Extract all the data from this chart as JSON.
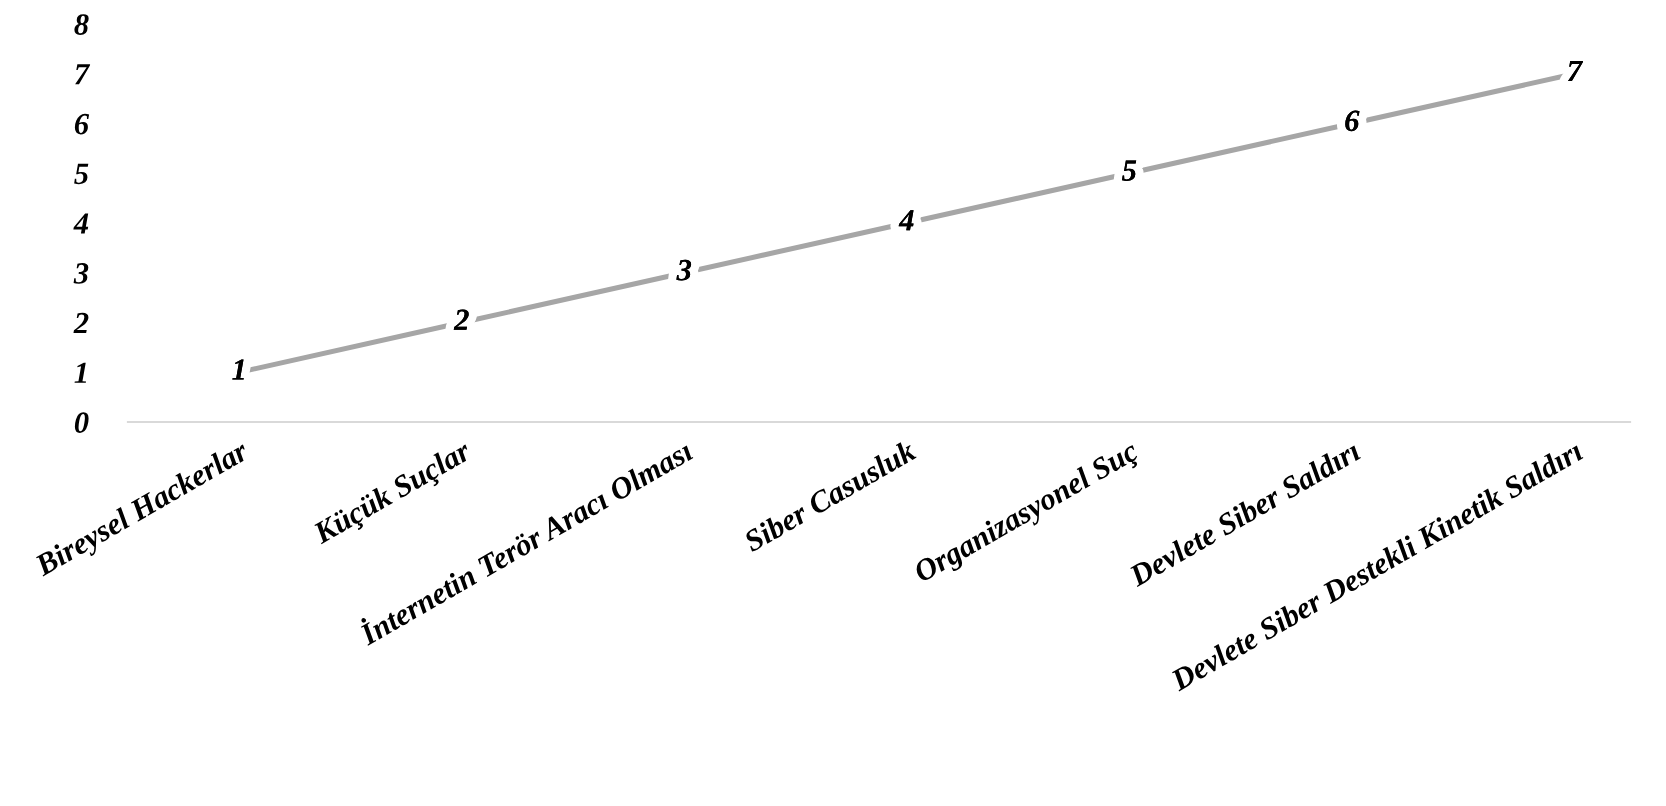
{
  "chart_data": {
    "type": "line",
    "categories": [
      "Bireysel Hackerlar",
      "Küçük Suçlar",
      "İnternetin Terör Aracı Olması",
      "Siber Casusluk",
      "Organizasyonel Suç",
      "Devlete Siber Saldırı",
      "Devlete Siber Destekli Kinetik Saldırı"
    ],
    "series": [
      {
        "color": "#a6a6a6",
        "values": [
          1,
          2,
          3,
          4,
          5,
          6,
          7
        ]
      }
    ],
    "ylim": [
      0,
      8
    ],
    "yticks": [
      0,
      1,
      2,
      3,
      4,
      5,
      6,
      7,
      8
    ],
    "data_labels": true,
    "grid": false,
    "legend": false,
    "line_style": "solid"
  }
}
